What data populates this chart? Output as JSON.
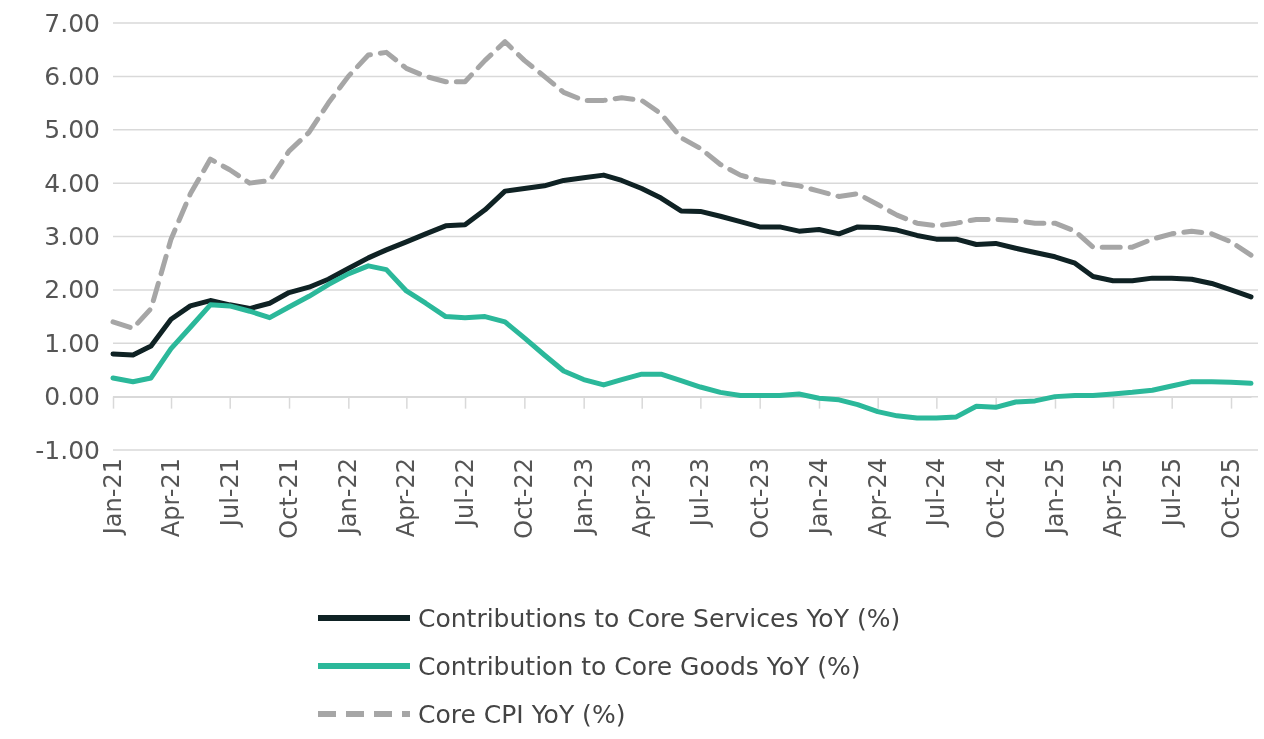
{
  "chart_data": {
    "type": "line",
    "x": [
      "2021-01",
      "2021-02",
      "2021-03",
      "2021-04",
      "2021-05",
      "2021-06",
      "2021-07",
      "2021-08",
      "2021-09",
      "2021-10",
      "2021-11",
      "2021-12",
      "2022-01",
      "2022-02",
      "2022-03",
      "2022-04",
      "2022-05",
      "2022-06",
      "2022-07",
      "2022-08",
      "2022-09",
      "2022-10",
      "2022-11",
      "2022-12",
      "2023-01",
      "2023-02",
      "2023-03",
      "2023-04",
      "2023-05",
      "2023-06",
      "2023-07",
      "2023-08",
      "2023-09",
      "2023-10",
      "2023-11",
      "2023-12",
      "2024-01",
      "2024-02",
      "2024-03",
      "2024-04",
      "2024-05",
      "2024-06",
      "2024-07",
      "2024-08",
      "2024-09",
      "2024-10",
      "2024-11",
      "2024-12",
      "2025-01",
      "2025-02",
      "2025-03",
      "2025-04",
      "2025-05",
      "2025-06",
      "2025-07",
      "2025-08",
      "2025-09",
      "2025-10",
      "2025-11"
    ],
    "series": [
      {
        "name": "Contributions to Core Services YoY (%)",
        "color": "#0f2224",
        "line_style": "solid",
        "values": [
          0.8,
          0.78,
          0.95,
          1.45,
          1.7,
          1.8,
          1.72,
          1.65,
          1.75,
          1.95,
          2.05,
          2.2,
          2.4,
          2.6,
          2.75,
          2.9,
          3.05,
          3.2,
          3.22,
          3.5,
          3.85,
          3.9,
          3.95,
          4.05,
          4.1,
          4.15,
          4.05,
          3.9,
          3.72,
          3.48,
          3.47,
          3.38,
          3.28,
          3.18,
          3.18,
          3.1,
          3.13,
          3.05,
          3.18,
          3.17,
          3.12,
          3.02,
          2.95,
          2.95,
          2.85,
          2.87,
          2.78,
          2.7,
          2.62,
          2.5,
          2.25,
          2.17,
          2.17,
          2.22,
          2.22,
          2.2,
          2.12,
          2.0,
          1.87
        ]
      },
      {
        "name": "Contribution to Core Goods YoY (%)",
        "color": "#2bb89a",
        "line_style": "solid",
        "values": [
          0.35,
          0.28,
          0.35,
          0.9,
          1.3,
          1.72,
          1.7,
          1.6,
          1.48,
          1.68,
          1.88,
          2.1,
          2.3,
          2.45,
          2.38,
          1.98,
          1.75,
          1.5,
          1.48,
          1.5,
          1.4,
          1.1,
          0.78,
          0.48,
          0.32,
          0.22,
          0.32,
          0.42,
          0.42,
          0.3,
          0.18,
          0.08,
          0.02,
          0.02,
          0.02,
          0.05,
          -0.03,
          -0.06,
          -0.15,
          -0.28,
          -0.36,
          -0.4,
          -0.4,
          -0.38,
          -0.18,
          -0.2,
          -0.1,
          -0.08,
          0.0,
          0.02,
          0.02,
          0.05,
          0.08,
          0.12,
          0.2,
          0.28,
          0.28,
          0.27,
          0.25
        ]
      },
      {
        "name": "Core CPI YoY (%)",
        "color": "#a6a6a6",
        "line_style": "dashed",
        "values": [
          1.4,
          1.28,
          1.65,
          2.95,
          3.8,
          4.45,
          4.25,
          4.0,
          4.05,
          4.6,
          4.95,
          5.5,
          6.0,
          6.4,
          6.45,
          6.15,
          6.0,
          5.9,
          5.9,
          6.3,
          6.65,
          6.3,
          6.0,
          5.7,
          5.55,
          5.55,
          5.6,
          5.55,
          5.3,
          4.85,
          4.65,
          4.35,
          4.15,
          4.05,
          4.0,
          3.95,
          3.85,
          3.75,
          3.8,
          3.6,
          3.4,
          3.25,
          3.2,
          3.25,
          3.32,
          3.32,
          3.3,
          3.25,
          3.25,
          3.1,
          2.8,
          2.8,
          2.8,
          2.95,
          3.05,
          3.1,
          3.05,
          2.9,
          2.65
        ]
      }
    ],
    "xlim": [
      "2021-01",
      "2025-11"
    ],
    "xticks": [
      {
        "value": "2021-01",
        "label": "Jan-21"
      },
      {
        "value": "2021-04",
        "label": "Apr-21"
      },
      {
        "value": "2021-07",
        "label": "Jul-21"
      },
      {
        "value": "2021-10",
        "label": "Oct-21"
      },
      {
        "value": "2022-01",
        "label": "Jan-22"
      },
      {
        "value": "2022-04",
        "label": "Apr-22"
      },
      {
        "value": "2022-07",
        "label": "Jul-22"
      },
      {
        "value": "2022-10",
        "label": "Oct-22"
      },
      {
        "value": "2023-01",
        "label": "Jan-23"
      },
      {
        "value": "2023-04",
        "label": "Apr-23"
      },
      {
        "value": "2023-07",
        "label": "Jul-23"
      },
      {
        "value": "2023-10",
        "label": "Oct-23"
      },
      {
        "value": "2024-01",
        "label": "Jan-24"
      },
      {
        "value": "2024-04",
        "label": "Apr-24"
      },
      {
        "value": "2024-07",
        "label": "Jul-24"
      },
      {
        "value": "2024-10",
        "label": "Oct-24"
      },
      {
        "value": "2025-01",
        "label": "Jan-25"
      },
      {
        "value": "2025-04",
        "label": "Apr-25"
      },
      {
        "value": "2025-07",
        "label": "Jul-25"
      },
      {
        "value": "2025-10",
        "label": "Oct-25"
      }
    ],
    "ylim": [
      -1,
      7
    ],
    "yticks": [
      {
        "value": -1,
        "label": "-1.00"
      },
      {
        "value": 0,
        "label": "0.00"
      },
      {
        "value": 1,
        "label": "1.00"
      },
      {
        "value": 2,
        "label": "2.00"
      },
      {
        "value": 3,
        "label": "3.00"
      },
      {
        "value": 4,
        "label": "4.00"
      },
      {
        "value": 5,
        "label": "5.00"
      },
      {
        "value": 6,
        "label": "6.00"
      },
      {
        "value": 7,
        "label": "7.00"
      }
    ],
    "grid": "y",
    "legend": "bottom",
    "marker": "none"
  }
}
